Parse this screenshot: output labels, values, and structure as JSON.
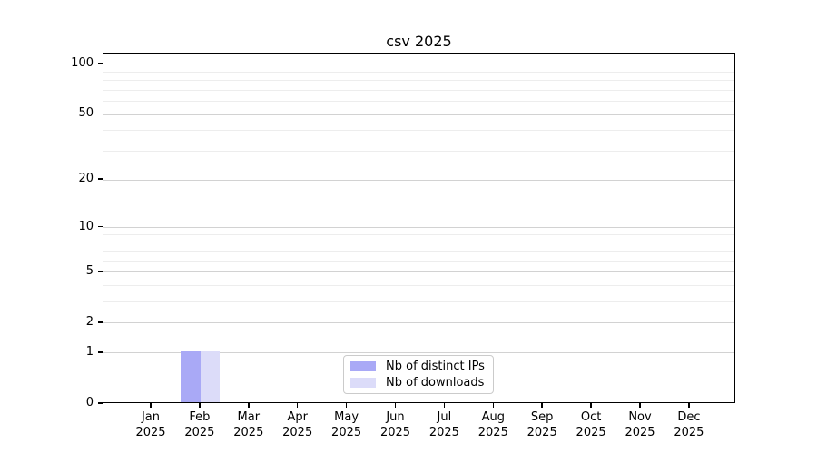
{
  "chart_data": {
    "type": "bar",
    "title": "csv 2025",
    "categories": [
      "Jan",
      "Feb",
      "Mar",
      "Apr",
      "May",
      "Jun",
      "Jul",
      "Aug",
      "Sep",
      "Oct",
      "Nov",
      "Dec"
    ],
    "year": "2025",
    "series": [
      {
        "name": "Nb of distinct IPs",
        "color": "#a9a9f6",
        "values": [
          0,
          1,
          0,
          0,
          0,
          0,
          0,
          0,
          0,
          0,
          0,
          0
        ]
      },
      {
        "name": "Nb of downloads",
        "color": "#dcdcf9",
        "values": [
          0,
          1,
          0,
          0,
          0,
          0,
          0,
          0,
          0,
          0,
          0,
          0
        ]
      }
    ],
    "yscale": "log1p",
    "y_major_ticks": [
      0,
      1,
      2,
      5,
      10,
      20,
      50,
      100
    ],
    "y_minor_ticks": [
      3,
      4,
      6,
      7,
      8,
      9,
      30,
      40,
      60,
      70,
      80,
      90
    ],
    "ylim": [
      0,
      116
    ],
    "xlabel": "",
    "ylabel": "",
    "grid": "horizontal",
    "legend_position": "lower center"
  }
}
